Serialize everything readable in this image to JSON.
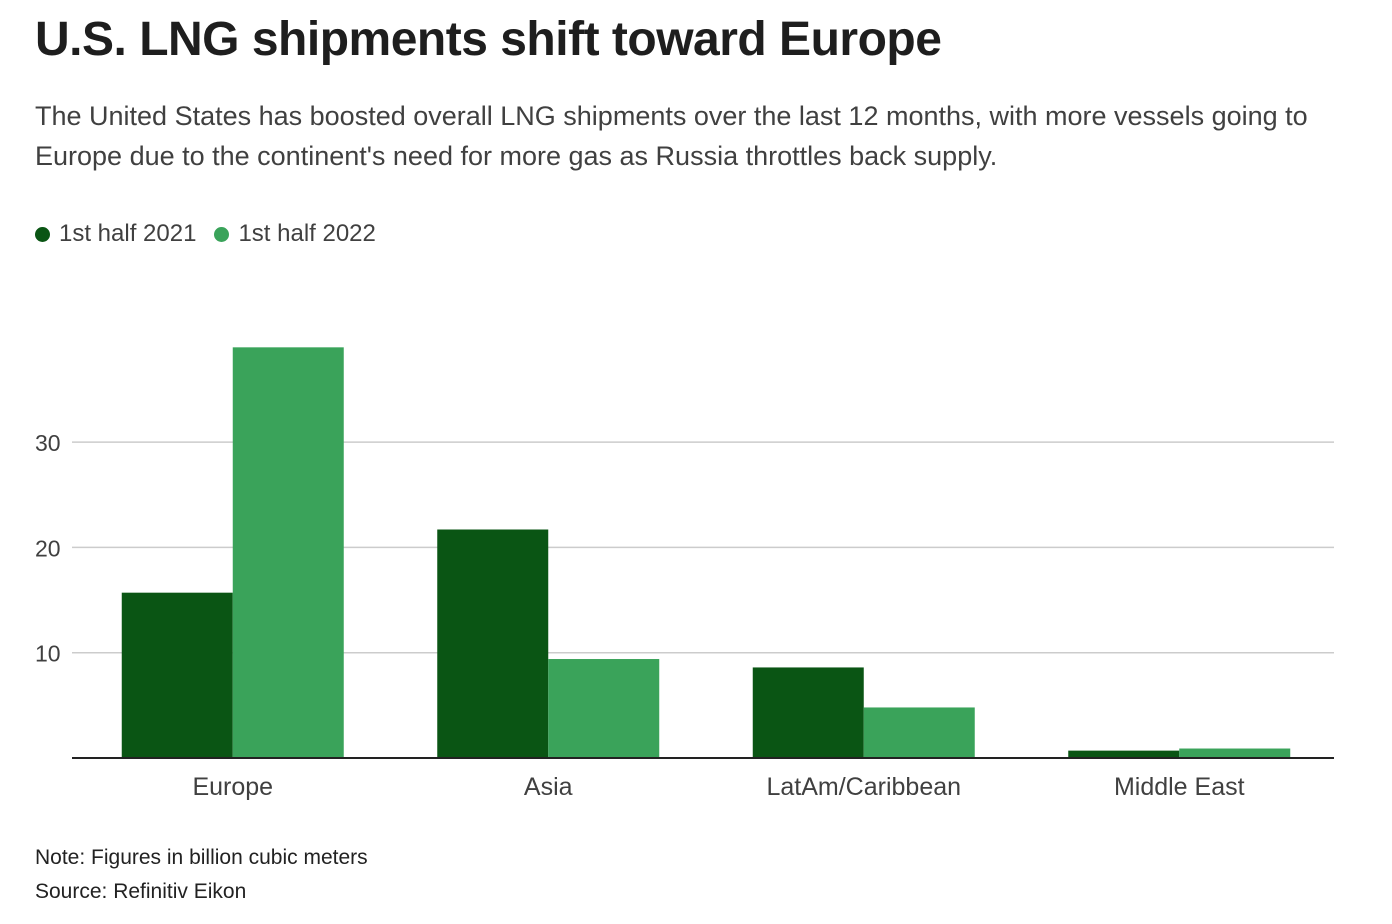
{
  "title": "U.S. LNG shipments shift toward Europe",
  "subtitle": "The United States has boosted overall LNG shipments over the last 12 months, with more vessels going to Europe due to the continent's need for more gas as Russia throttles back supply.",
  "note": "Note: Figures in billion cubic meters",
  "source": "Source: Refinitiv Eikon",
  "colors": {
    "series_2021": "#0a5514",
    "series_2022": "#3aa35a",
    "grid": "#cccccc",
    "axis": "#222222",
    "tick_text": "#404040"
  },
  "chart_data": {
    "type": "bar",
    "categories": [
      "Europe",
      "Asia",
      "LatAm/Caribbean",
      "Middle East"
    ],
    "series": [
      {
        "name": "1st half 2021",
        "values": [
          15.7,
          21.7,
          8.6,
          0.7
        ]
      },
      {
        "name": "1st half 2022",
        "values": [
          39.0,
          9.4,
          4.8,
          0.9
        ]
      }
    ],
    "yticks": [
      10,
      20,
      30
    ],
    "ylim": [
      0,
      40
    ],
    "grid": true,
    "legend_position": "top-left"
  }
}
